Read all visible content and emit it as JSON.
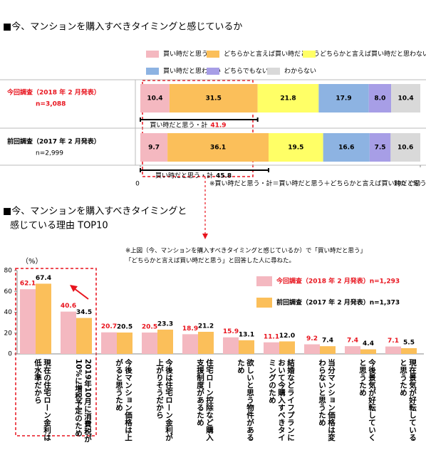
{
  "chart_data": [
    {
      "type": "stacked-bar-horizontal",
      "title": "■今、マンションを購入すべきタイミングと感じているか",
      "categories": [
        "今回調査（2018 年 2 月発表）",
        "前回調査（2017 年 2 月発表）"
      ],
      "category_notes": [
        "n=3,088",
        "n=2,999"
      ],
      "series": [
        {
          "name": "買い時だと思う",
          "color": "#f4b8c0",
          "values": [
            10.4,
            9.7
          ]
        },
        {
          "name": "どちらかと言えば買い時だと思う",
          "color": "#fbbf5a",
          "values": [
            31.5,
            36.1
          ]
        },
        {
          "name": "どちらかと言えば買い時だと思わない",
          "color": "#ffff66",
          "values": [
            21.8,
            19.5
          ]
        },
        {
          "name": "買い時だと思わない",
          "color": "#8db3e2",
          "values": [
            17.9,
            16.6
          ]
        },
        {
          "name": "どちらでもない",
          "color": "#a79ee6",
          "values": [
            8.0,
            7.5
          ],
          "value_labels": [
            "8.0",
            "7.5"
          ]
        },
        {
          "name": "わからない",
          "color": "#d9d9d9",
          "values": [
            10.4,
            10.6
          ]
        }
      ],
      "totals": {
        "label": "買い時だと思う・計",
        "values": [
          41.9,
          45.8
        ]
      },
      "xlim": [
        0,
        100
      ],
      "xticks": [
        0,
        {
          "value": 100,
          "label": "100（%）"
        }
      ],
      "footnote": "※買い時だと思う・計＝買い時だと思う＋どちらかと言えば買い時だと思う"
    },
    {
      "type": "bar",
      "title": [
        "■今、マンションを購入すべきタイミングと",
        "感じている理由 TOP10"
      ],
      "note": [
        "※上図（今、マンションを購入すべきタイミングと感じているか）で「買い時だと思う」",
        "「どちらかと言えば買い時だと思う」と回答した人に尋ねた。"
      ],
      "y_label": "（%）",
      "categories": [
        "現在の住宅ローン金利は低水準だから",
        "2019年10月に消費税が10%に増税予定のため",
        "今後マンション価格は上がると思うため",
        "今後は住宅ローン金利が上がりそうだから",
        "住宅ローン控除など購入支援制度があるため",
        "欲しいと思う物件があるため",
        "結婚などライフプランにおいて今購入すべきタイミングのため",
        "当分マンション価格は変わらないと思うため",
        "今後景気が好転していくと思うため",
        "現在景気が好転していると思うため"
      ],
      "series": [
        {
          "name": "今回調査（2018 年 2 月発表）n=1,293",
          "color": "#f4b8c0",
          "label_color": "#e8141e",
          "values": [
            62.1,
            40.6,
            20.7,
            20.5,
            18.9,
            15.9,
            11.1,
            9.2,
            7.4,
            7.1
          ]
        },
        {
          "name": "前回調査（2017 年 2 月発表）n=1,373",
          "color": "#fbbf5a",
          "label_color": "#000000",
          "values": [
            67.4,
            34.5,
            20.5,
            23.3,
            21.2,
            13.1,
            12.0,
            7.4,
            4.4,
            5.5
          ],
          "value_labels": [
            "67.4",
            "34.5",
            "20.5",
            "23.3",
            "21.2",
            "13.1",
            "12.0",
            "7.4",
            "4.4",
            "5.5"
          ]
        }
      ],
      "ylim": [
        0,
        80
      ],
      "yticks": [
        0,
        20,
        40,
        60,
        80
      ],
      "grid": false
    }
  ]
}
